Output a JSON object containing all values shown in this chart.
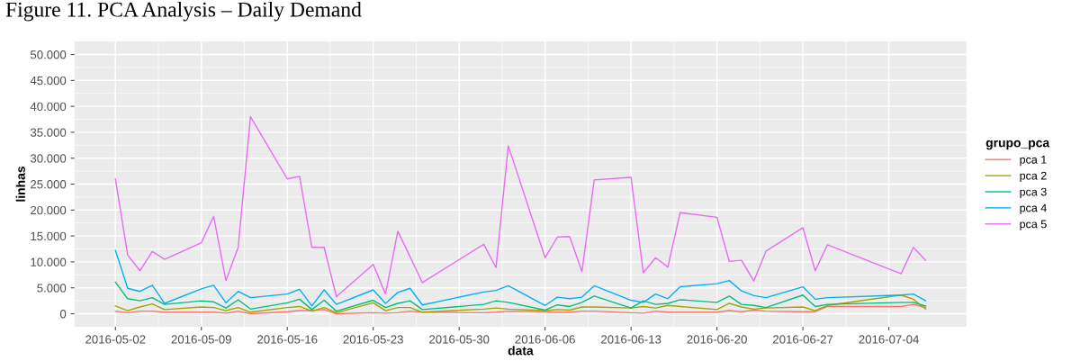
{
  "chart_data": {
    "type": "line",
    "title": "Figure 11. PCA Analysis – Daily Demand",
    "xlabel": "data",
    "ylabel": "linhas",
    "legend_title": "grupo_pca",
    "legend": "right",
    "grid": true,
    "x": [
      "2016-05-02",
      "2016-05-03",
      "2016-05-04",
      "2016-05-05",
      "2016-05-06",
      "2016-05-09",
      "2016-05-10",
      "2016-05-11",
      "2016-05-12",
      "2016-05-13",
      "2016-05-16",
      "2016-05-17",
      "2016-05-18",
      "2016-05-19",
      "2016-05-20",
      "2016-05-23",
      "2016-05-24",
      "2016-05-25",
      "2016-05-26",
      "2016-05-27",
      "2016-06-01",
      "2016-06-02",
      "2016-06-03",
      "2016-06-06",
      "2016-06-07",
      "2016-06-08",
      "2016-06-09",
      "2016-06-10",
      "2016-06-13",
      "2016-06-14",
      "2016-06-15",
      "2016-06-16",
      "2016-06-17",
      "2016-06-20",
      "2016-06-21",
      "2016-06-22",
      "2016-06-23",
      "2016-06-24",
      "2016-06-27",
      "2016-06-28",
      "2016-06-29",
      "2016-07-05",
      "2016-07-06",
      "2016-07-07"
    ],
    "series": [
      {
        "name": "pca 1",
        "color": "#f8766d",
        "values": [
          500,
          200,
          500,
          500,
          300,
          300,
          300,
          100,
          500,
          0,
          400,
          600,
          600,
          800,
          0,
          200,
          100,
          200,
          500,
          300,
          200,
          300,
          500,
          400,
          300,
          300,
          500,
          500,
          200,
          100,
          500,
          300,
          300,
          300,
          600,
          400,
          700,
          500,
          400,
          400,
          1400,
          1400,
          1800,
          1200
        ]
      },
      {
        "name": "pca 2",
        "color": "#a3a500",
        "values": [
          1500,
          600,
          1300,
          1900,
          800,
          1300,
          1200,
          600,
          1200,
          300,
          1200,
          1400,
          500,
          1200,
          200,
          2100,
          600,
          1200,
          1200,
          300,
          900,
          1100,
          900,
          600,
          800,
          700,
          1300,
          1300,
          1100,
          1400,
          1100,
          1600,
          1400,
          800,
          2000,
          1300,
          900,
          1100,
          1300,
          600,
          1600,
          3600,
          2800,
          900
        ]
      },
      {
        "name": "pca 3",
        "color": "#00bf7d",
        "values": [
          6100,
          2900,
          2500,
          3100,
          1800,
          2500,
          2300,
          1100,
          2700,
          900,
          2100,
          2800,
          800,
          2600,
          500,
          2600,
          1200,
          2000,
          2500,
          800,
          1800,
          2500,
          2200,
          700,
          1700,
          1400,
          2200,
          3400,
          1100,
          2500,
          1800,
          2000,
          2700,
          2200,
          3400,
          1800,
          1600,
          1200,
          3600,
          1400,
          1800,
          2200,
          2200,
          1500
        ]
      },
      {
        "name": "pca 4",
        "color": "#00b0f6",
        "values": [
          12200,
          4900,
          4300,
          5500,
          2000,
          4800,
          5500,
          2100,
          4300,
          3100,
          3800,
          4700,
          1500,
          4600,
          1800,
          4600,
          2000,
          4100,
          4900,
          1700,
          4200,
          4500,
          5400,
          1600,
          3200,
          2900,
          3200,
          5400,
          2600,
          2200,
          3800,
          2900,
          5200,
          5800,
          6400,
          4400,
          3500,
          3100,
          5200,
          2800,
          3100,
          3600,
          3800,
          2500
        ]
      },
      {
        "name": "pca 5",
        "color": "#e76bf3",
        "values": [
          26000,
          11300,
          8300,
          12000,
          10500,
          13700,
          18800,
          6400,
          12800,
          38000,
          26000,
          26500,
          12800,
          12800,
          3300,
          9500,
          3800,
          15900,
          11000,
          6000,
          13400,
          8900,
          32400,
          10800,
          14800,
          14900,
          8100,
          25800,
          26300,
          7900,
          10800,
          9000,
          19500,
          18600,
          10100,
          10300,
          6300,
          12100,
          16600,
          8300,
          13300,
          7700,
          12800,
          10300
        ]
      }
    ],
    "xlim": [
      "2016-04-28T16:00",
      "2016-07-10T08:00"
    ],
    "xticks": [
      "2016-05-02",
      "2016-05-09",
      "2016-05-16",
      "2016-05-23",
      "2016-05-30",
      "2016-06-06",
      "2016-06-13",
      "2016-06-20",
      "2016-06-27",
      "2016-07-04"
    ],
    "ylim": [
      -2500,
      52500
    ],
    "yticks": [
      0,
      {
        "value": 5000,
        "label": "5.000"
      },
      {
        "value": 10000,
        "label": "10.000"
      },
      {
        "value": 15000,
        "label": "15.000"
      },
      {
        "value": 20000,
        "label": "20.000"
      },
      {
        "value": 25000,
        "label": "25.000"
      },
      {
        "value": 30000,
        "label": "30.000"
      },
      {
        "value": 35000,
        "label": "35.000"
      },
      {
        "value": 40000,
        "label": "40.000"
      },
      {
        "value": 45000,
        "label": "45.000"
      },
      {
        "value": 50000,
        "label": "50.000"
      }
    ]
  }
}
